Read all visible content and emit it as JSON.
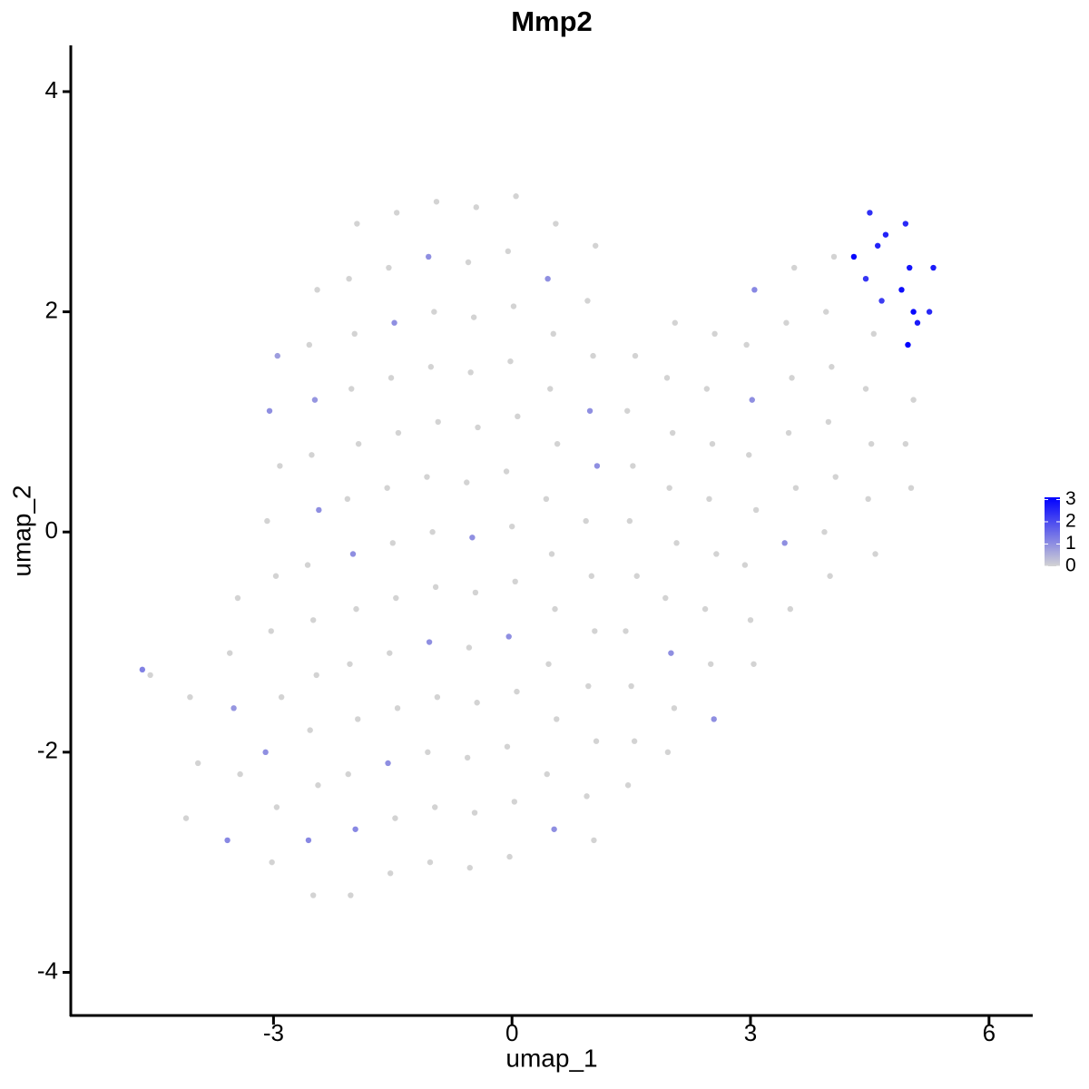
{
  "chart_data": {
    "type": "scatter",
    "title": "Mmp2",
    "x_label": "umap_1",
    "y_label": "umap_2",
    "xlim": [
      -5.55,
      6.55
    ],
    "xticks": [
      -3,
      0,
      3,
      6
    ],
    "ylim": [
      -4.4,
      4.42
    ],
    "yticks": [
      -4,
      -2,
      0,
      2,
      4
    ],
    "color_low": "#d3d3d3",
    "color_high": "#0000ff",
    "color_lim": [
      0,
      3.1
    ],
    "legend_ticks": [
      0,
      1,
      2,
      3
    ],
    "x": [
      -4.65,
      -4.55,
      -4.05,
      -3.95,
      -4.1,
      -3.45,
      -3.55,
      -3.5,
      -3.42,
      -3.58,
      -2.95,
      -3.05,
      -2.92,
      -3.08,
      -2.97,
      -3.03,
      -2.9,
      -3.1,
      -2.96,
      -3.02,
      -2.45,
      -2.55,
      -2.48,
      -2.52,
      -2.43,
      -2.57,
      -2.5,
      -2.46,
      -2.54,
      -2.44,
      -2.56,
      -2.5,
      -1.95,
      -2.05,
      -1.98,
      -2.02,
      -1.93,
      -2.07,
      -2.0,
      -1.96,
      -2.04,
      -1.94,
      -2.06,
      -1.97,
      -2.03,
      -1.45,
      -1.55,
      -1.48,
      -1.52,
      -1.43,
      -1.57,
      -1.5,
      -1.46,
      -1.54,
      -1.44,
      -1.56,
      -1.47,
      -1.53,
      -0.95,
      -1.05,
      -0.98,
      -1.02,
      -0.93,
      -1.07,
      -1.0,
      -0.96,
      -1.04,
      -0.94,
      -1.06,
      -0.97,
      -1.03,
      -0.45,
      -0.55,
      -0.48,
      -0.52,
      -0.43,
      -0.57,
      -0.5,
      -0.46,
      -0.54,
      -0.44,
      -0.56,
      -0.47,
      -0.53,
      0.05,
      -0.05,
      0.02,
      -0.02,
      0.07,
      -0.07,
      0,
      0.04,
      -0.04,
      0.06,
      -0.06,
      0.03,
      -0.03,
      0.55,
      0.45,
      0.52,
      0.48,
      0.57,
      0.43,
      0.5,
      0.54,
      0.46,
      0.56,
      0.44,
      0.53,
      1.05,
      0.95,
      1.02,
      0.98,
      1.07,
      0.93,
      1.0,
      1.04,
      0.96,
      1.06,
      0.94,
      1.03,
      1.55,
      1.45,
      1.52,
      1.48,
      1.57,
      1.43,
      1.5,
      1.54,
      1.46,
      2.05,
      1.95,
      2.02,
      1.98,
      2.07,
      1.93,
      2.0,
      2.04,
      1.96,
      2.55,
      2.45,
      2.52,
      2.48,
      2.57,
      2.43,
      2.5,
      2.54,
      3.05,
      2.95,
      3.02,
      2.98,
      3.07,
      2.93,
      3.0,
      3.04,
      3.55,
      3.45,
      3.52,
      3.48,
      3.57,
      3.43,
      3.5,
      4.05,
      3.95,
      4.02,
      3.98,
      4.07,
      3.93,
      4.0,
      4.55,
      4.45,
      4.52,
      4.48,
      4.57,
      5.05,
      4.95,
      5.02,
      4.5,
      4.6,
      4.45,
      4.95,
      5.0,
      5.05,
      4.98,
      5.3,
      5.25,
      4.3,
      4.7,
      4.9,
      5.1,
      4.65
    ],
    "values": [
      -1.25,
      -1.3,
      -1.5,
      -2.1,
      -2.6,
      -0.6,
      -1.1,
      -1.6,
      -2.2,
      -2.8,
      1.6,
      1.1,
      0.6,
      0.1,
      -0.4,
      -0.9,
      -1.5,
      -2.0,
      -2.5,
      -3.0,
      2.2,
      1.7,
      1.2,
      0.7,
      0.2,
      -0.3,
      -0.8,
      -1.3,
      -1.8,
      -2.3,
      -2.8,
      -3.3,
      2.8,
      2.3,
      1.8,
      1.3,
      0.8,
      0.3,
      -0.2,
      -0.7,
      -1.2,
      -1.7,
      -2.2,
      -2.7,
      -3.3,
      2.9,
      2.4,
      1.9,
      1.4,
      0.9,
      0.4,
      -0.1,
      -0.6,
      -1.1,
      -1.6,
      -2.1,
      -2.6,
      -3.1,
      3.0,
      2.5,
      2.0,
      1.5,
      1.0,
      0.5,
      0,
      -0.5,
      -1.0,
      -1.5,
      -2.0,
      -2.5,
      -3.0,
      2.95,
      2.45,
      1.95,
      1.45,
      0.95,
      0.45,
      -0.05,
      -0.55,
      -1.05,
      -1.55,
      -2.05,
      -2.55,
      -3.05,
      3.05,
      2.55,
      2.05,
      1.55,
      1.05,
      0.55,
      0.05,
      -0.45,
      -0.95,
      -1.45,
      -1.95,
      -2.45,
      -2.95,
      2.8,
      2.3,
      1.8,
      1.3,
      0.8,
      0.3,
      -0.2,
      -0.7,
      -1.2,
      -1.7,
      -2.2,
      -2.7,
      2.6,
      2.1,
      1.6,
      1.1,
      0.6,
      0.1,
      -0.4,
      -0.9,
      -1.4,
      -1.9,
      -2.4,
      -2.8,
      1.6,
      1.1,
      0.6,
      0.1,
      -0.4,
      -0.9,
      -1.4,
      -1.9,
      -2.3,
      1.9,
      1.4,
      0.9,
      0.4,
      -0.1,
      -0.6,
      -1.1,
      -1.6,
      -2.0,
      1.8,
      1.3,
      0.8,
      0.3,
      -0.2,
      -0.7,
      -1.2,
      -1.7,
      2.2,
      1.7,
      1.2,
      0.7,
      0.2,
      -0.3,
      -0.8,
      -1.2,
      2.4,
      1.9,
      1.4,
      0.9,
      0.4,
      -0.1,
      -0.7,
      2.5,
      2.0,
      1.5,
      1.0,
      0.5,
      0,
      -0.4,
      1.8,
      1.3,
      0.8,
      0.3,
      -0.2,
      1.2,
      0.8,
      0.4,
      2.9,
      2.6,
      2.3,
      2.8,
      2.4,
      2.0,
      1.7,
      2.4,
      2.0,
      2.5,
      2.7,
      2.2,
      1.9,
      2.1
    ],
    "expression": [
      1.2,
      0,
      0,
      0,
      0,
      0,
      0,
      0.9,
      0,
      1.1,
      0.8,
      1.0,
      0,
      0,
      0,
      0,
      0,
      1.0,
      0,
      0,
      0,
      0,
      0.9,
      0,
      1.0,
      0,
      0,
      0,
      0,
      0,
      1.1,
      0,
      0,
      0,
      0,
      0,
      0,
      0,
      1.0,
      0,
      0,
      0,
      0,
      1.1,
      0,
      0,
      0,
      1.0,
      0,
      0,
      0,
      0,
      0,
      0,
      0,
      1.0,
      0,
      0,
      0,
      1.0,
      0,
      0,
      0,
      0,
      0,
      0,
      1.0,
      0,
      0,
      0,
      0,
      0,
      0,
      0,
      0,
      0,
      0,
      1.0,
      0,
      0,
      0,
      0,
      0,
      0,
      0,
      0,
      0,
      0,
      0,
      0,
      0,
      0,
      1.0,
      0,
      0,
      0,
      0,
      0,
      1.0,
      0,
      0,
      0,
      0,
      0,
      0,
      0,
      0,
      0,
      1.0,
      0,
      0,
      0,
      1.0,
      1.0,
      0,
      0,
      0,
      0,
      0,
      0,
      0,
      0,
      0,
      0,
      0,
      0,
      0,
      0,
      0,
      0,
      0,
      0,
      0,
      0,
      0,
      0,
      1.0,
      0,
      0,
      0,
      0,
      0,
      0,
      0,
      0,
      0,
      1.0,
      1.1,
      0,
      1.0,
      0,
      0,
      0,
      0,
      0,
      0,
      0,
      0,
      0,
      0,
      1.0,
      0,
      0,
      0,
      0,
      0,
      0,
      0,
      0,
      0,
      0,
      0,
      0,
      0,
      0,
      0,
      0,
      2.4,
      2.6,
      2.3,
      2.5,
      2.8,
      3.0,
      3.1,
      2.7,
      2.5,
      3.0,
      2.6,
      2.9,
      2.7,
      2.2
    ]
  }
}
